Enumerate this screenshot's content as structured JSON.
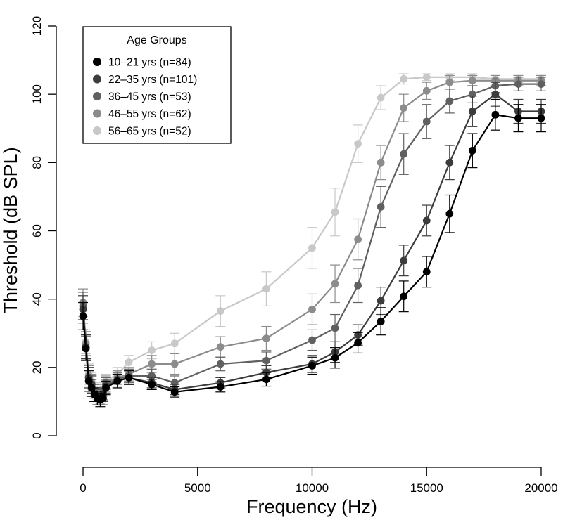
{
  "chart_data": {
    "type": "line",
    "xlabel": "Frequency (Hz)",
    "ylabel": "Threshold (dB SPL)",
    "xlim": [
      0,
      20000
    ],
    "ylim": [
      0,
      120
    ],
    "xticks": [
      0,
      5000,
      10000,
      15000,
      20000
    ],
    "yticks": [
      0,
      20,
      40,
      60,
      80,
      100,
      120
    ],
    "xtick_labels": [
      "0",
      "5000",
      "10000",
      "15000",
      "20000"
    ],
    "ytick_labels": [
      "0",
      "20",
      "40",
      "60",
      "80",
      "100",
      "120"
    ],
    "grid": false,
    "error_bars": true,
    "legend": {
      "title": "Age Groups",
      "placement": "top-left"
    },
    "series": [
      {
        "name": "10–21 yrs (n=84)",
        "color": "#000000",
        "x": [
          0,
          125,
          250,
          375,
          500,
          625,
          750,
          875,
          1000,
          1500,
          2000,
          3000,
          4000,
          6000,
          8000,
          10000,
          11000,
          12000,
          13000,
          14000,
          15000,
          16000,
          17000,
          18000,
          19000,
          20000
        ],
        "y": [
          35,
          25.5,
          16,
          14,
          12,
          11,
          10.5,
          11,
          14,
          16,
          17,
          15,
          12.8,
          14.3,
          16.5,
          20.5,
          22.8,
          27.2,
          33.5,
          40.8,
          48,
          65,
          83.5,
          94,
          93,
          93
        ],
        "err": [
          4,
          3.5,
          3,
          2.5,
          2,
          2,
          2,
          2,
          2,
          2,
          2,
          1.5,
          1.5,
          1.5,
          2,
          2.5,
          3,
          3,
          4,
          4.5,
          4.5,
          5.5,
          5,
          4.5,
          4,
          4
        ]
      },
      {
        "name": "22–35 yrs (n=101)",
        "color": "#3c3c3c",
        "x": [
          0,
          125,
          250,
          375,
          500,
          625,
          750,
          875,
          1000,
          1500,
          2000,
          3000,
          4000,
          6000,
          8000,
          10000,
          11000,
          12000,
          13000,
          14000,
          15000,
          16000,
          17000,
          18000,
          19000,
          20000
        ],
        "y": [
          37,
          26,
          17,
          15,
          12,
          11,
          11,
          12,
          14.5,
          16,
          17,
          15.5,
          13.5,
          15.5,
          18.5,
          21,
          24.5,
          29.5,
          39.5,
          51.3,
          63,
          80,
          95,
          100,
          95,
          95
        ],
        "err": [
          4,
          3.5,
          3,
          2.5,
          2,
          2,
          2,
          2,
          2,
          2,
          2,
          1.5,
          1.5,
          1.5,
          2,
          2.5,
          3,
          3,
          4,
          4.5,
          4.5,
          5,
          4.5,
          3.5,
          3.5,
          3.5
        ]
      },
      {
        "name": "36–45 yrs (n=53)",
        "color": "#606060",
        "x": [
          0,
          125,
          250,
          375,
          500,
          625,
          750,
          875,
          1000,
          1500,
          2000,
          3000,
          4000,
          6000,
          8000,
          10000,
          11000,
          12000,
          13000,
          14000,
          15000,
          16000,
          17000,
          18000,
          19000,
          20000
        ],
        "y": [
          38,
          26,
          17,
          15,
          13,
          12,
          11.5,
          12.5,
          15,
          16.5,
          17.5,
          17.5,
          15.5,
          21,
          22,
          28,
          31.5,
          44,
          67,
          82.5,
          92,
          98,
          100,
          102.5,
          103,
          103
        ],
        "err": [
          4,
          3.5,
          3,
          2.5,
          2,
          2,
          2,
          2,
          2,
          2,
          2,
          2,
          2,
          2,
          2.5,
          3,
          4,
          5,
          6,
          6,
          5,
          3.5,
          2.5,
          2,
          2,
          2
        ]
      },
      {
        "name": "46–55 yrs (n=62)",
        "color": "#8c8c8c",
        "x": [
          0,
          125,
          250,
          375,
          500,
          625,
          750,
          875,
          1000,
          1500,
          2000,
          3000,
          4000,
          6000,
          8000,
          10000,
          11000,
          12000,
          13000,
          14000,
          15000,
          16000,
          17000,
          18000,
          19000,
          20000
        ],
        "y": [
          39,
          27,
          17.5,
          15.5,
          13,
          12,
          12,
          13,
          15.5,
          17,
          18,
          21,
          21,
          26,
          28.5,
          37,
          44.5,
          57.5,
          80,
          96,
          101,
          103.5,
          104,
          104,
          104,
          104
        ],
        "err": [
          4,
          3.5,
          3,
          2.5,
          2,
          2,
          2,
          2,
          2,
          2,
          2,
          2.5,
          3,
          3,
          3.5,
          4.5,
          5.5,
          6,
          5,
          4,
          2.5,
          2,
          1.5,
          1.5,
          1.5,
          1.5
        ]
      },
      {
        "name": "56–65 yrs (n=52)",
        "color": "#c8c8c8",
        "x": [
          0,
          125,
          250,
          375,
          500,
          625,
          750,
          875,
          1000,
          1500,
          2000,
          3000,
          4000,
          6000,
          8000,
          10000,
          11000,
          12000,
          13000,
          14000,
          15000,
          16000,
          17000,
          18000,
          19000,
          20000
        ],
        "y": [
          39,
          27.5,
          18,
          16,
          13.5,
          12.5,
          12.5,
          13.5,
          16,
          18,
          21.5,
          25,
          27,
          36.5,
          43,
          55,
          65.5,
          85.5,
          99,
          104.5,
          105,
          105,
          105,
          104.5,
          104.5,
          104.5
        ],
        "err": [
          4,
          3.5,
          3,
          2.5,
          2,
          2,
          2,
          2,
          2,
          2,
          2,
          2.5,
          3,
          4.5,
          5,
          6,
          7,
          5.5,
          3.5,
          1.5,
          1,
          1,
          1,
          1,
          1,
          1
        ]
      }
    ]
  }
}
